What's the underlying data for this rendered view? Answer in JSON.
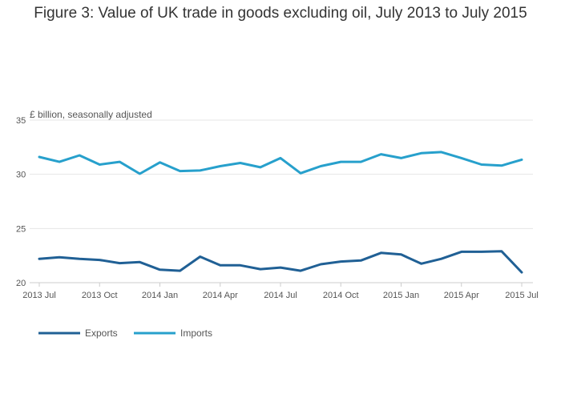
{
  "chart_data": {
    "type": "line",
    "title": "Figure 3: Value of UK trade in goods excluding oil, July 2013 to July 2015",
    "ylabel": "£ billion, seasonally adjusted",
    "xlabel": "",
    "ylim": [
      20,
      35
    ],
    "yticks": [
      20,
      25,
      30,
      35
    ],
    "x": [
      "2013 Jul",
      "2013 Aug",
      "2013 Sep",
      "2013 Oct",
      "2013 Nov",
      "2013 Dec",
      "2014 Jan",
      "2014 Feb",
      "2014 Mar",
      "2014 Apr",
      "2014 May",
      "2014 Jun",
      "2014 Jul",
      "2014 Aug",
      "2014 Sep",
      "2014 Oct",
      "2014 Nov",
      "2014 Dec",
      "2015 Jan",
      "2015 Feb",
      "2015 Mar",
      "2015 Apr",
      "2015 May",
      "2015 Jun",
      "2015 Jul"
    ],
    "xticks": [
      "2013 Jul",
      "2013 Oct",
      "2014 Jan",
      "2014 Apr",
      "2014 Jul",
      "2014 Oct",
      "2015 Jan",
      "2015 Apr",
      "2015 Jul"
    ],
    "grid": true,
    "legend": "bottom-left",
    "series": [
      {
        "name": "Exports",
        "color": "#206095",
        "values": [
          22.2,
          22.35,
          22.2,
          22.1,
          21.8,
          21.9,
          21.2,
          21.1,
          22.4,
          21.6,
          21.6,
          21.25,
          21.4,
          21.1,
          21.7,
          21.95,
          22.05,
          22.75,
          22.6,
          21.75,
          22.2,
          22.85,
          22.85,
          22.9,
          20.95
        ]
      },
      {
        "name": "Imports",
        "color": "#27A0CC",
        "values": [
          31.6,
          31.15,
          31.75,
          30.9,
          31.15,
          30.05,
          31.1,
          30.3,
          30.35,
          30.75,
          31.05,
          30.65,
          31.5,
          30.1,
          30.75,
          31.15,
          31.15,
          31.85,
          31.5,
          31.95,
          32.05,
          31.5,
          30.9,
          30.8,
          31.35
        ]
      }
    ]
  }
}
